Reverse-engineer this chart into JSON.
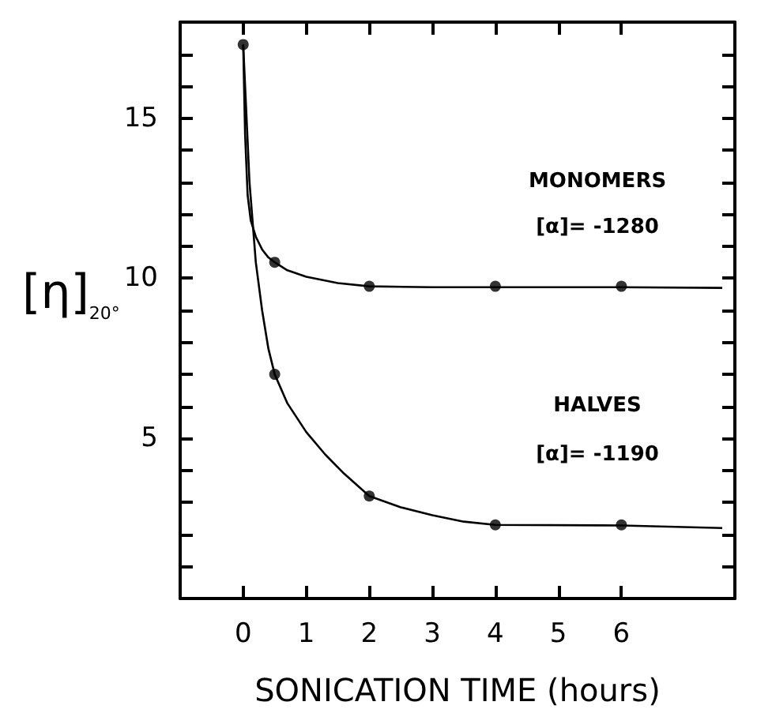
{
  "chart_data": {
    "type": "line",
    "xlabel": "SONICATION TIME (hours)",
    "ylabel": "[η]$_{20°}$",
    "xlim": [
      -1,
      7.8
    ],
    "xticks": [
      0,
      1,
      2,
      3,
      4,
      5,
      6
    ],
    "ylim": [
      0,
      18
    ],
    "yticks": [
      {
        "value": 1,
        "label": null
      },
      {
        "value": 2,
        "label": null
      },
      {
        "value": 3,
        "label": null
      },
      {
        "value": 4,
        "label": null
      },
      5,
      {
        "value": 6,
        "label": null
      },
      {
        "value": 7,
        "label": null
      },
      {
        "value": 8,
        "label": null
      },
      {
        "value": 9,
        "label": null
      },
      10,
      {
        "value": 11,
        "label": null
      },
      {
        "value": 12,
        "label": null
      },
      {
        "value": 13,
        "label": null
      },
      {
        "value": 14,
        "label": null
      },
      15,
      {
        "value": 16,
        "label": null
      },
      {
        "value": 17,
        "label": null
      }
    ],
    "grid": false,
    "series": [
      {
        "color": "#000000",
        "marker": "none",
        "x": [
          0,
          0.03,
          0.07,
          0.12,
          0.2,
          0.3,
          0.4,
          0.5,
          0.7,
          1,
          1.5,
          2,
          3,
          4,
          6,
          7.6
        ],
        "values": [
          17.3,
          14.5,
          12.6,
          11.8,
          11.3,
          10.9,
          10.65,
          10.5,
          10.25,
          10.05,
          9.85,
          9.75,
          9.72,
          9.72,
          9.72,
          9.7
        ]
      },
      {
        "type": "scatter",
        "color": "#000000",
        "marker": "circle",
        "x": [
          0.5,
          2,
          4,
          6
        ],
        "values": [
          10.5,
          9.75,
          9.75,
          9.75
        ]
      },
      {
        "color": "#000000",
        "marker": "none",
        "x": [
          0,
          0.1,
          0.2,
          0.3,
          0.4,
          0.5,
          0.7,
          1,
          1.3,
          1.6,
          2,
          2.5,
          3,
          3.5,
          4,
          6,
          7.6
        ],
        "values": [
          17.3,
          13,
          10.5,
          9.0,
          7.8,
          7.0,
          6.1,
          5.2,
          4.5,
          3.9,
          3.2,
          2.85,
          2.6,
          2.4,
          2.3,
          2.28,
          2.2
        ]
      },
      {
        "type": "scatter",
        "color": "#000000",
        "marker": "circle",
        "x": [
          0,
          0.5,
          2,
          4,
          6
        ],
        "values": [
          17.3,
          7.0,
          3.2,
          2.3,
          2.3
        ]
      }
    ],
    "annotations": [
      "MONOMERS",
      "[α]= -1280",
      "HALVES",
      "[α]= -1190"
    ]
  }
}
